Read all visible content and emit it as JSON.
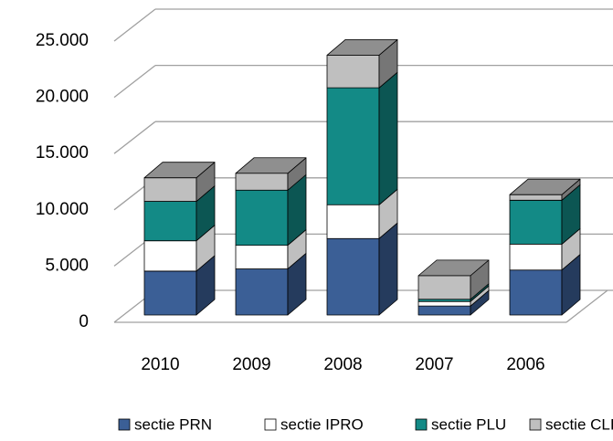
{
  "chart_data": {
    "type": "bar3d_stacked",
    "categories": [
      "2010",
      "2009",
      "2008",
      "2007",
      "2006"
    ],
    "series": [
      {
        "name": "sectie PRN",
        "color": "#3b5f96",
        "values": [
          3900,
          4100,
          6800,
          800,
          4000
        ]
      },
      {
        "name": "sectie IPRO",
        "color": "#ffffff",
        "values": [
          2700,
          2100,
          3000,
          400,
          2300
        ]
      },
      {
        "name": "sectie PLU",
        "color": "#138a86",
        "values": [
          3500,
          4900,
          10400,
          200,
          3900
        ]
      },
      {
        "name": "sectie CLIP",
        "color": "#bfbfbf",
        "values": [
          2100,
          1500,
          2900,
          2100,
          500
        ]
      }
    ],
    "ylim": [
      0,
      25000
    ],
    "yticks": [
      0,
      {
        "value": 5000,
        "label": "5.000"
      },
      {
        "value": 10000,
        "label": "10.000"
      },
      {
        "value": 15000,
        "label": "15.000"
      },
      {
        "value": 20000,
        "label": "20.000"
      },
      {
        "value": 25000,
        "label": "25.000"
      }
    ],
    "grid": true,
    "legend": "bottom"
  }
}
